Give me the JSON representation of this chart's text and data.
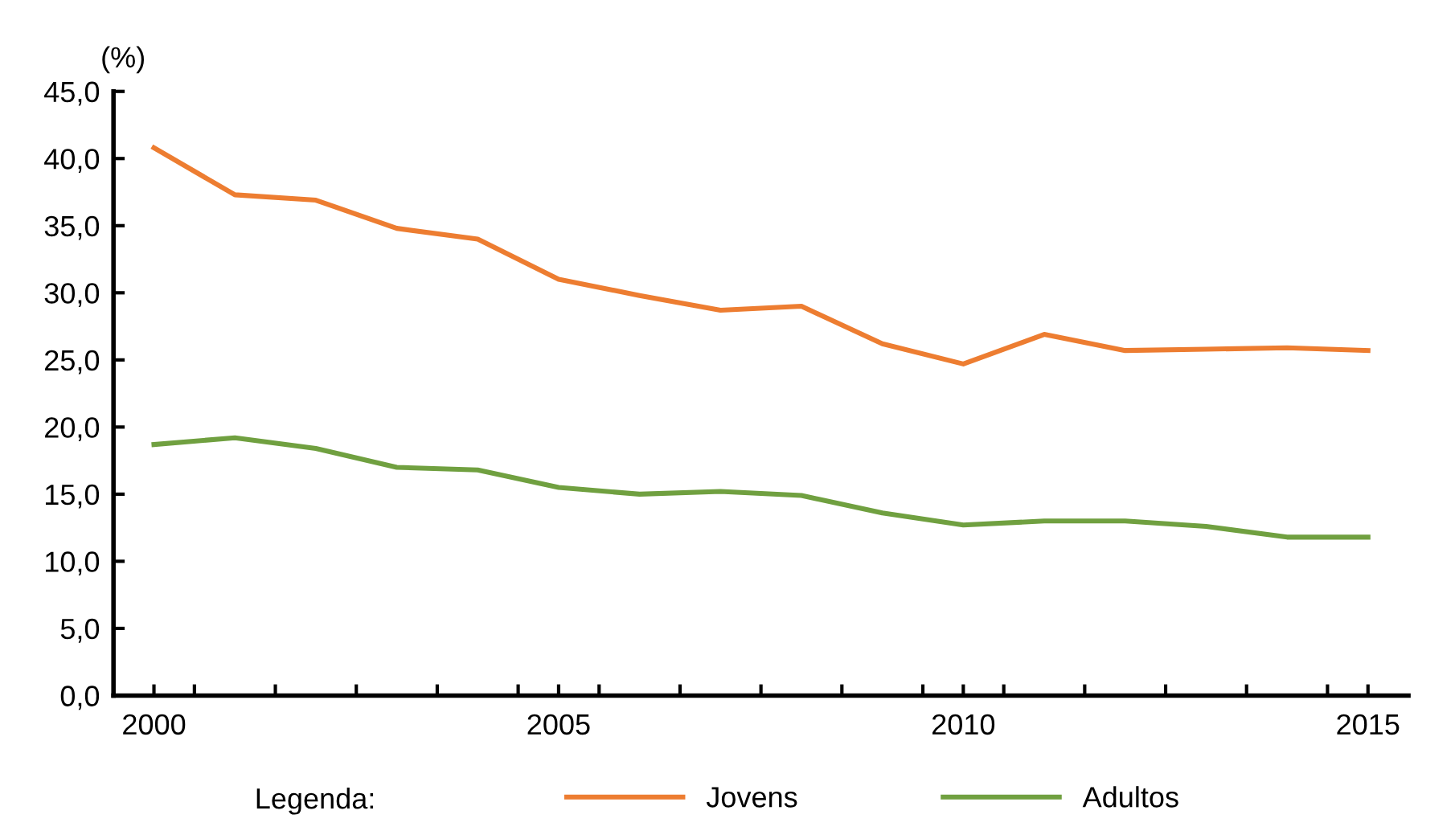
{
  "chart_data": {
    "type": "line",
    "ylabel": "(%)",
    "legend_title": "Legenda:",
    "x": [
      2000,
      2001,
      2002,
      2003,
      2004,
      2005,
      2006,
      2007,
      2008,
      2009,
      2010,
      2011,
      2012,
      2013,
      2014,
      2015
    ],
    "series": [
      {
        "name": "Jovens",
        "color": "#ed7d31",
        "values": [
          40.8,
          37.3,
          36.9,
          34.8,
          34.0,
          31.0,
          29.8,
          28.7,
          29.0,
          26.2,
          24.7,
          26.9,
          25.7,
          25.8,
          25.9,
          25.7
        ]
      },
      {
        "name": "Adultos",
        "color": "#70a040",
        "values": [
          18.7,
          19.2,
          18.4,
          17.0,
          16.8,
          15.5,
          15.0,
          15.2,
          14.9,
          13.6,
          12.7,
          13.0,
          13.0,
          12.6,
          11.8,
          11.8
        ]
      }
    ],
    "xlim": [
      1999.5,
      2015.5
    ],
    "xticks": [
      {
        "value": 2000,
        "label": "2000"
      },
      {
        "value": 2000.5,
        "label": null
      },
      {
        "value": 2001.5,
        "label": null
      },
      {
        "value": 2002.5,
        "label": null
      },
      {
        "value": 2003.5,
        "label": null
      },
      {
        "value": 2004.5,
        "label": null
      },
      {
        "value": 2005,
        "label": "2005"
      },
      {
        "value": 2005.5,
        "label": null
      },
      {
        "value": 2006.5,
        "label": null
      },
      {
        "value": 2007.5,
        "label": null
      },
      {
        "value": 2008.5,
        "label": null
      },
      {
        "value": 2009.5,
        "label": null
      },
      {
        "value": 2010,
        "label": "2010"
      },
      {
        "value": 2010.5,
        "label": null
      },
      {
        "value": 2011.5,
        "label": null
      },
      {
        "value": 2012.5,
        "label": null
      },
      {
        "value": 2013.5,
        "label": null
      },
      {
        "value": 2014.5,
        "label": null
      },
      {
        "value": 2015,
        "label": "2015"
      }
    ],
    "ylim": [
      0,
      45
    ],
    "yticks": [
      {
        "value": 0,
        "label": "0,0"
      },
      {
        "value": 5,
        "label": "5,0"
      },
      {
        "value": 10,
        "label": "10,0"
      },
      {
        "value": 15,
        "label": "15,0"
      },
      {
        "value": 20,
        "label": "20,0"
      },
      {
        "value": 25,
        "label": "25,0"
      },
      {
        "value": 30,
        "label": "30,0"
      },
      {
        "value": 35,
        "label": "35,0"
      },
      {
        "value": 40,
        "label": "40,0"
      },
      {
        "value": 45,
        "label": "45,0"
      }
    ],
    "grid": false,
    "legend": "bottom",
    "marker": "none",
    "line_style": "solid"
  }
}
